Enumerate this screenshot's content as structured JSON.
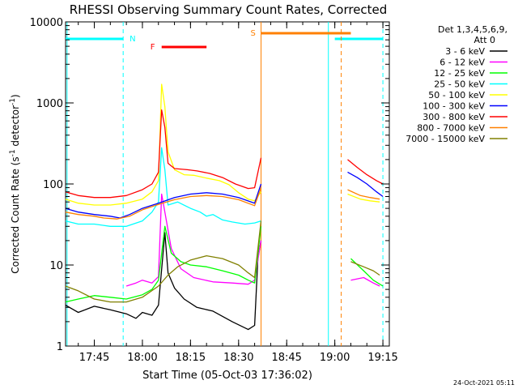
{
  "chart_data": {
    "type": "line",
    "title": "RHESSI Observing Summary Count Rates, Corrected",
    "xlabel": "Start Time (05-Oct-03 17:36:02)",
    "ylabel_main": "Corrected Count Rate (s",
    "ylabel_sup1": "-1",
    "ylabel_mid": " detector",
    "ylabel_sup2": "-1",
    "ylabel_end": ")",
    "y_scale": "log",
    "ylim": [
      1,
      10000
    ],
    "xlim": [
      "17:36:02",
      "19:17:00"
    ],
    "x_ticks": [
      "17:45",
      "18:00",
      "18:15",
      "18:30",
      "18:45",
      "19:00",
      "19:15"
    ],
    "y_ticks": [
      "1",
      "10",
      "100",
      "1000",
      "10000"
    ],
    "legend_header": [
      "Det 1,3,4,5,6,9,",
      "Att 0"
    ],
    "legend_position": "right",
    "footer_date": "24-Oct-2021 05:11",
    "markers": [
      {
        "label": "N",
        "type": "night",
        "color": "#00ffff"
      },
      {
        "label": "F",
        "type": "flare",
        "color": "#ff0000"
      },
      {
        "label": "S",
        "type": "saa",
        "color": "#ff8000"
      }
    ],
    "series": [
      {
        "name": "3 - 6 keV",
        "color": "#000000",
        "points": [
          [
            "17:36",
            3.2
          ],
          [
            "17:40",
            2.6
          ],
          [
            "17:45",
            3.1
          ],
          [
            "17:50",
            2.8
          ],
          [
            "17:55",
            2.5
          ],
          [
            "17:58",
            2.2
          ],
          [
            "18:00",
            2.6
          ],
          [
            "18:03",
            2.4
          ],
          [
            "18:05",
            3.2
          ],
          [
            "18:07",
            25
          ],
          [
            "18:08",
            8
          ],
          [
            "18:10",
            5.2
          ],
          [
            "18:13",
            3.8
          ],
          [
            "18:17",
            3.0
          ],
          [
            "18:22",
            2.7
          ],
          [
            "18:28",
            2.0
          ],
          [
            "18:33",
            1.6
          ],
          [
            "18:35",
            1.8
          ],
          [
            "18:36",
            12
          ],
          [
            "18:37",
            20
          ]
        ]
      },
      {
        "name": "6 - 12 keV",
        "color": "#ff00ff",
        "points": [
          [
            "17:55",
            5.5
          ],
          [
            "17:58",
            6.0
          ],
          [
            "18:00",
            6.5
          ],
          [
            "18:03",
            6.0
          ],
          [
            "18:05",
            7.2
          ],
          [
            "18:06",
            75
          ],
          [
            "18:07",
            45
          ],
          [
            "18:09",
            16
          ],
          [
            "18:12",
            9
          ],
          [
            "18:16",
            7.0
          ],
          [
            "18:22",
            6.2
          ],
          [
            "18:28",
            6.0
          ],
          [
            "18:33",
            5.8
          ],
          [
            "18:35",
            6.5
          ],
          [
            "18:37",
            20
          ],
          [
            "19:05",
            6.5
          ],
          [
            "19:09",
            7.0
          ],
          [
            "19:12",
            6.0
          ],
          [
            "19:14",
            5.5
          ]
        ]
      },
      {
        "name": "12 - 25 keV",
        "color": "#00ff00",
        "points": [
          [
            "17:36",
            3.5
          ],
          [
            "17:40",
            3.8
          ],
          [
            "17:45",
            4.2
          ],
          [
            "17:50",
            4.0
          ],
          [
            "17:55",
            3.8
          ],
          [
            "18:00",
            4.3
          ],
          [
            "18:03",
            5.0
          ],
          [
            "18:05",
            6.5
          ],
          [
            "18:07",
            30
          ],
          [
            "18:09",
            14
          ],
          [
            "18:12",
            11
          ],
          [
            "18:15",
            10
          ],
          [
            "18:20",
            9.5
          ],
          [
            "18:25",
            8.5
          ],
          [
            "18:30",
            7.5
          ],
          [
            "18:33",
            6.5
          ],
          [
            "18:35",
            6.0
          ],
          [
            "18:37",
            30
          ],
          [
            "19:05",
            12
          ],
          [
            "19:09",
            8.5
          ],
          [
            "19:12",
            6.5
          ],
          [
            "19:15",
            5.5
          ]
        ]
      },
      {
        "name": "25 - 50 keV",
        "color": "#00ffff",
        "points": [
          [
            "17:36",
            35
          ],
          [
            "17:40",
            32
          ],
          [
            "17:45",
            32
          ],
          [
            "17:50",
            30
          ],
          [
            "17:55",
            30
          ],
          [
            "18:00",
            35
          ],
          [
            "18:03",
            45
          ],
          [
            "18:05",
            60
          ],
          [
            "18:06",
            280
          ],
          [
            "18:07",
            150
          ],
          [
            "18:08",
            55
          ],
          [
            "18:11",
            60
          ],
          [
            "18:15",
            50
          ],
          [
            "18:18",
            45
          ],
          [
            "18:20",
            40
          ],
          [
            "18:22",
            42
          ],
          [
            "18:25",
            36
          ],
          [
            "18:28",
            34
          ],
          [
            "18:32",
            32
          ],
          [
            "18:35",
            33
          ],
          [
            "18:37",
            35
          ]
        ]
      },
      {
        "name": "50 - 100 keV",
        "color": "#ffff00",
        "points": [
          [
            "17:36",
            65
          ],
          [
            "17:40",
            58
          ],
          [
            "17:45",
            55
          ],
          [
            "17:50",
            55
          ],
          [
            "17:55",
            58
          ],
          [
            "18:00",
            65
          ],
          [
            "18:03",
            80
          ],
          [
            "18:05",
            110
          ],
          [
            "18:06",
            1700
          ],
          [
            "18:07",
            900
          ],
          [
            "18:08",
            250
          ],
          [
            "18:10",
            150
          ],
          [
            "18:13",
            130
          ],
          [
            "18:16",
            128
          ],
          [
            "18:20",
            118
          ],
          [
            "18:24",
            110
          ],
          [
            "18:27",
            98
          ],
          [
            "18:30",
            78
          ],
          [
            "18:33",
            65
          ],
          [
            "18:35",
            62
          ],
          [
            "18:37",
            80
          ],
          [
            "19:04",
            75
          ],
          [
            "19:08",
            65
          ],
          [
            "19:11",
            62
          ],
          [
            "19:14",
            60
          ]
        ]
      },
      {
        "name": "100 - 300 keV",
        "color": "#0000ff",
        "points": [
          [
            "17:36",
            50
          ],
          [
            "17:40",
            45
          ],
          [
            "17:45",
            42
          ],
          [
            "17:50",
            40
          ],
          [
            "17:53",
            38
          ],
          [
            "17:56",
            42
          ],
          [
            "18:00",
            50
          ],
          [
            "18:05",
            58
          ],
          [
            "18:10",
            68
          ],
          [
            "18:15",
            75
          ],
          [
            "18:20",
            78
          ],
          [
            "18:25",
            75
          ],
          [
            "18:30",
            68
          ],
          [
            "18:35",
            58
          ],
          [
            "18:37",
            100
          ],
          [
            "19:04",
            140
          ],
          [
            "19:07",
            120
          ],
          [
            "19:10",
            100
          ],
          [
            "19:13",
            80
          ],
          [
            "19:15",
            70
          ]
        ]
      },
      {
        "name": "300 - 800 keV",
        "color": "#ff0000",
        "points": [
          [
            "17:36",
            80
          ],
          [
            "17:40",
            72
          ],
          [
            "17:45",
            68
          ],
          [
            "17:50",
            68
          ],
          [
            "17:55",
            72
          ],
          [
            "18:00",
            85
          ],
          [
            "18:03",
            100
          ],
          [
            "18:05",
            140
          ],
          [
            "18:06",
            820
          ],
          [
            "18:07",
            500
          ],
          [
            "18:08",
            180
          ],
          [
            "18:10",
            155
          ],
          [
            "18:14",
            150
          ],
          [
            "18:17",
            145
          ],
          [
            "18:21",
            135
          ],
          [
            "18:25",
            120
          ],
          [
            "18:29",
            100
          ],
          [
            "18:33",
            88
          ],
          [
            "18:35",
            90
          ],
          [
            "18:37",
            210
          ],
          [
            "19:04",
            200
          ],
          [
            "19:07",
            160
          ],
          [
            "19:10",
            130
          ],
          [
            "19:13",
            110
          ],
          [
            "19:15",
            100
          ]
        ]
      },
      {
        "name": "800 - 7000 keV",
        "color": "#ff8000",
        "points": [
          [
            "17:36",
            45
          ],
          [
            "17:40",
            42
          ],
          [
            "17:45",
            40
          ],
          [
            "17:48",
            38
          ],
          [
            "17:52",
            37
          ],
          [
            "17:56",
            40
          ],
          [
            "18:00",
            48
          ],
          [
            "18:05",
            56
          ],
          [
            "18:10",
            64
          ],
          [
            "18:15",
            70
          ],
          [
            "18:20",
            72
          ],
          [
            "18:25",
            70
          ],
          [
            "18:30",
            64
          ],
          [
            "18:35",
            54
          ],
          [
            "18:37",
            90
          ],
          [
            "19:04",
            85
          ],
          [
            "19:08",
            72
          ],
          [
            "19:11",
            68
          ],
          [
            "19:14",
            65
          ]
        ]
      },
      {
        "name": "7000 - 15000 keV",
        "color": "#808000",
        "points": [
          [
            "17:36",
            5.5
          ],
          [
            "17:40",
            4.8
          ],
          [
            "17:45",
            3.8
          ],
          [
            "17:50",
            3.5
          ],
          [
            "17:55",
            3.5
          ],
          [
            "18:00",
            4.0
          ],
          [
            "18:05",
            5.5
          ],
          [
            "18:08",
            7.5
          ],
          [
            "18:11",
            9.5
          ],
          [
            "18:15",
            11.5
          ],
          [
            "18:20",
            13
          ],
          [
            "18:25",
            12
          ],
          [
            "18:30",
            10
          ],
          [
            "18:33",
            8.0
          ],
          [
            "18:35",
            7.0
          ],
          [
            "18:37",
            35
          ],
          [
            "19:05",
            11
          ],
          [
            "19:09",
            9.5
          ],
          [
            "19:12",
            8.5
          ],
          [
            "19:14",
            7.5
          ]
        ]
      }
    ]
  }
}
